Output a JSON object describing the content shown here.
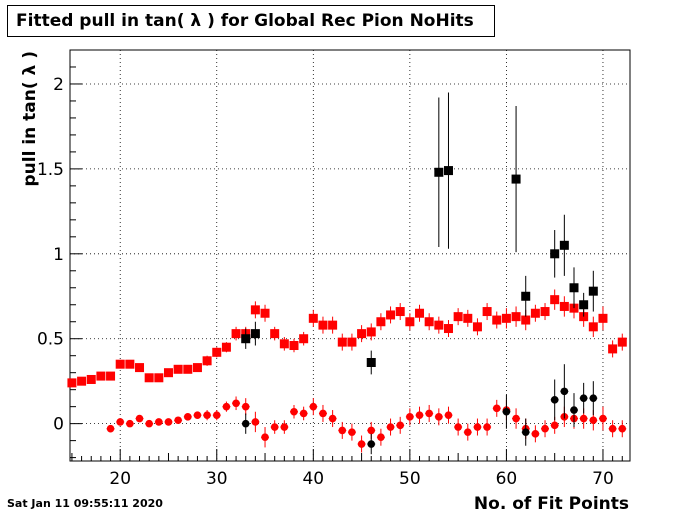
{
  "title": "Fitted pull in tan( λ ) for Global Rec Pion NoHits",
  "timestamp": "Sat Jan 11 09:55:11 2020",
  "chart_data": {
    "type": "scatter",
    "xlabel": "No. of Fit Points",
    "ylabel": "pull in tan( λ )",
    "xlim": [
      14.8,
      72.8
    ],
    "ylim": [
      -0.22,
      2.2
    ],
    "grid": true,
    "x_ticks": [
      "20",
      "30",
      "40",
      "50",
      "60",
      "70"
    ],
    "y_ticks": [
      "0",
      "0.5",
      "1",
      "1.5",
      "2"
    ],
    "colors": {
      "red": "#ff0000",
      "black": "#000000",
      "axis": "#000000"
    },
    "series": [
      {
        "marker": "square",
        "color": "#ff0000",
        "points": [
          {
            "x": 15,
            "y": 0.24,
            "err": 0.02
          },
          {
            "x": 16,
            "y": 0.25,
            "err": 0.02
          },
          {
            "x": 17,
            "y": 0.26,
            "err": 0.02
          },
          {
            "x": 18,
            "y": 0.28,
            "err": 0.02
          },
          {
            "x": 19,
            "y": 0.28,
            "err": 0.02
          },
          {
            "x": 20,
            "y": 0.35,
            "err": 0.02
          },
          {
            "x": 21,
            "y": 0.35,
            "err": 0.02
          },
          {
            "x": 22,
            "y": 0.33,
            "err": 0.02
          },
          {
            "x": 23,
            "y": 0.27,
            "err": 0.02
          },
          {
            "x": 24,
            "y": 0.27,
            "err": 0.02
          },
          {
            "x": 25,
            "y": 0.3,
            "err": 0.02
          },
          {
            "x": 26,
            "y": 0.32,
            "err": 0.02
          },
          {
            "x": 27,
            "y": 0.32,
            "err": 0.02
          },
          {
            "x": 28,
            "y": 0.33,
            "err": 0.02
          },
          {
            "x": 29,
            "y": 0.37,
            "err": 0.03
          },
          {
            "x": 30,
            "y": 0.42,
            "err": 0.03
          },
          {
            "x": 31,
            "y": 0.45,
            "err": 0.03
          },
          {
            "x": 32,
            "y": 0.53,
            "err": 0.04
          },
          {
            "x": 33,
            "y": 0.53,
            "err": 0.04
          },
          {
            "x": 34,
            "y": 0.67,
            "err": 0.05
          },
          {
            "x": 35,
            "y": 0.65,
            "err": 0.05
          },
          {
            "x": 36,
            "y": 0.53,
            "err": 0.04
          },
          {
            "x": 37,
            "y": 0.47,
            "err": 0.04
          },
          {
            "x": 38,
            "y": 0.46,
            "err": 0.04
          },
          {
            "x": 39,
            "y": 0.5,
            "err": 0.04
          },
          {
            "x": 40,
            "y": 0.62,
            "err": 0.05
          },
          {
            "x": 41,
            "y": 0.58,
            "err": 0.05
          },
          {
            "x": 42,
            "y": 0.58,
            "err": 0.05
          },
          {
            "x": 43,
            "y": 0.48,
            "err": 0.05
          },
          {
            "x": 44,
            "y": 0.48,
            "err": 0.05
          },
          {
            "x": 45,
            "y": 0.53,
            "err": 0.05
          },
          {
            "x": 46,
            "y": 0.54,
            "err": 0.05
          },
          {
            "x": 47,
            "y": 0.6,
            "err": 0.05
          },
          {
            "x": 48,
            "y": 0.64,
            "err": 0.05
          },
          {
            "x": 49,
            "y": 0.66,
            "err": 0.05
          },
          {
            "x": 50,
            "y": 0.6,
            "err": 0.05
          },
          {
            "x": 51,
            "y": 0.65,
            "err": 0.05
          },
          {
            "x": 52,
            "y": 0.6,
            "err": 0.05
          },
          {
            "x": 53,
            "y": 0.58,
            "err": 0.05
          },
          {
            "x": 54,
            "y": 0.56,
            "err": 0.05
          },
          {
            "x": 55,
            "y": 0.63,
            "err": 0.05
          },
          {
            "x": 56,
            "y": 0.62,
            "err": 0.05
          },
          {
            "x": 57,
            "y": 0.57,
            "err": 0.05
          },
          {
            "x": 58,
            "y": 0.66,
            "err": 0.05
          },
          {
            "x": 59,
            "y": 0.61,
            "err": 0.05
          },
          {
            "x": 60,
            "y": 0.62,
            "err": 0.06
          },
          {
            "x": 61,
            "y": 0.63,
            "err": 0.06
          },
          {
            "x": 62,
            "y": 0.61,
            "err": 0.06
          },
          {
            "x": 63,
            "y": 0.65,
            "err": 0.05
          },
          {
            "x": 64,
            "y": 0.66,
            "err": 0.05
          },
          {
            "x": 65,
            "y": 0.73,
            "err": 0.06
          },
          {
            "x": 66,
            "y": 0.69,
            "err": 0.06
          },
          {
            "x": 67,
            "y": 0.68,
            "err": 0.06
          },
          {
            "x": 68,
            "y": 0.63,
            "err": 0.06
          },
          {
            "x": 69,
            "y": 0.57,
            "err": 0.06
          },
          {
            "x": 70,
            "y": 0.62,
            "err": 0.07
          },
          {
            "x": 71,
            "y": 0.44,
            "err": 0.05
          },
          {
            "x": 72,
            "y": 0.48,
            "err": 0.05
          }
        ]
      },
      {
        "marker": "circle",
        "color": "#ff0000",
        "points": [
          {
            "x": 19,
            "y": -0.03,
            "err": 0.02
          },
          {
            "x": 20,
            "y": 0.01,
            "err": 0.02
          },
          {
            "x": 21,
            "y": 0.0,
            "err": 0.02
          },
          {
            "x": 22,
            "y": 0.03,
            "err": 0.02
          },
          {
            "x": 23,
            "y": 0.0,
            "err": 0.02
          },
          {
            "x": 24,
            "y": 0.01,
            "err": 0.02
          },
          {
            "x": 25,
            "y": 0.01,
            "err": 0.02
          },
          {
            "x": 26,
            "y": 0.02,
            "err": 0.02
          },
          {
            "x": 27,
            "y": 0.04,
            "err": 0.02
          },
          {
            "x": 28,
            "y": 0.05,
            "err": 0.02
          },
          {
            "x": 29,
            "y": 0.05,
            "err": 0.03
          },
          {
            "x": 30,
            "y": 0.05,
            "err": 0.03
          },
          {
            "x": 31,
            "y": 0.1,
            "err": 0.03
          },
          {
            "x": 32,
            "y": 0.12,
            "err": 0.04
          },
          {
            "x": 33,
            "y": 0.1,
            "err": 0.05
          },
          {
            "x": 34,
            "y": 0.01,
            "err": 0.06
          },
          {
            "x": 35,
            "y": -0.08,
            "err": 0.06
          },
          {
            "x": 36,
            "y": -0.02,
            "err": 0.04
          },
          {
            "x": 37,
            "y": -0.02,
            "err": 0.04
          },
          {
            "x": 38,
            "y": 0.07,
            "err": 0.04
          },
          {
            "x": 39,
            "y": 0.06,
            "err": 0.04
          },
          {
            "x": 40,
            "y": 0.1,
            "err": 0.05
          },
          {
            "x": 41,
            "y": 0.06,
            "err": 0.05
          },
          {
            "x": 42,
            "y": 0.03,
            "err": 0.05
          },
          {
            "x": 43,
            "y": -0.04,
            "err": 0.05
          },
          {
            "x": 44,
            "y": -0.05,
            "err": 0.05
          },
          {
            "x": 45,
            "y": -0.12,
            "err": 0.05
          },
          {
            "x": 46,
            "y": -0.04,
            "err": 0.05
          },
          {
            "x": 47,
            "y": -0.08,
            "err": 0.05
          },
          {
            "x": 48,
            "y": -0.02,
            "err": 0.05
          },
          {
            "x": 49,
            "y": -0.01,
            "err": 0.05
          },
          {
            "x": 50,
            "y": 0.04,
            "err": 0.05
          },
          {
            "x": 51,
            "y": 0.05,
            "err": 0.05
          },
          {
            "x": 52,
            "y": 0.06,
            "err": 0.05
          },
          {
            "x": 53,
            "y": 0.04,
            "err": 0.05
          },
          {
            "x": 54,
            "y": 0.05,
            "err": 0.05
          },
          {
            "x": 55,
            "y": -0.02,
            "err": 0.05
          },
          {
            "x": 56,
            "y": -0.05,
            "err": 0.05
          },
          {
            "x": 57,
            "y": -0.02,
            "err": 0.05
          },
          {
            "x": 58,
            "y": -0.02,
            "err": 0.05
          },
          {
            "x": 59,
            "y": 0.09,
            "err": 0.05
          },
          {
            "x": 60,
            "y": 0.08,
            "err": 0.06
          },
          {
            "x": 61,
            "y": 0.03,
            "err": 0.06
          },
          {
            "x": 62,
            "y": -0.03,
            "err": 0.06
          },
          {
            "x": 63,
            "y": -0.06,
            "err": 0.05
          },
          {
            "x": 64,
            "y": -0.03,
            "err": 0.05
          },
          {
            "x": 65,
            "y": -0.01,
            "err": 0.05
          },
          {
            "x": 66,
            "y": 0.04,
            "err": 0.06
          },
          {
            "x": 67,
            "y": 0.03,
            "err": 0.06
          },
          {
            "x": 68,
            "y": 0.03,
            "err": 0.06
          },
          {
            "x": 69,
            "y": 0.02,
            "err": 0.06
          },
          {
            "x": 70,
            "y": 0.03,
            "err": 0.07
          },
          {
            "x": 71,
            "y": -0.03,
            "err": 0.05
          },
          {
            "x": 72,
            "y": -0.03,
            "err": 0.05
          }
        ]
      },
      {
        "marker": "square",
        "color": "#000000",
        "points": [
          {
            "x": 33,
            "y": 0.5,
            "err": 0.06
          },
          {
            "x": 34,
            "y": 0.53,
            "err": 0.07
          },
          {
            "x": 46,
            "y": 0.36,
            "err": 0.07
          },
          {
            "x": 53,
            "y": 1.48,
            "err": 0.44
          },
          {
            "x": 54,
            "y": 1.49,
            "err": 0.46
          },
          {
            "x": 61,
            "y": 1.44,
            "err": 0.43
          },
          {
            "x": 62,
            "y": 0.75,
            "err": 0.12
          },
          {
            "x": 65,
            "y": 1.0,
            "err": 0.14
          },
          {
            "x": 66,
            "y": 1.05,
            "err": 0.18
          },
          {
            "x": 67,
            "y": 0.8,
            "err": 0.12
          },
          {
            "x": 68,
            "y": 0.7,
            "err": 0.07
          },
          {
            "x": 69,
            "y": 0.78,
            "err": 0.12
          }
        ]
      },
      {
        "marker": "circle",
        "color": "#000000",
        "points": [
          {
            "x": 33,
            "y": 0.0,
            "err": 0.06
          },
          {
            "x": 46,
            "y": -0.12,
            "err": 0.06
          },
          {
            "x": 60,
            "y": 0.07,
            "err": 0.1
          },
          {
            "x": 62,
            "y": -0.05,
            "err": 0.08
          },
          {
            "x": 65,
            "y": 0.14,
            "err": 0.12
          },
          {
            "x": 66,
            "y": 0.19,
            "err": 0.16
          },
          {
            "x": 67,
            "y": 0.08,
            "err": 0.1
          },
          {
            "x": 68,
            "y": 0.15,
            "err": 0.09
          },
          {
            "x": 69,
            "y": 0.15,
            "err": 0.1
          }
        ]
      }
    ]
  }
}
